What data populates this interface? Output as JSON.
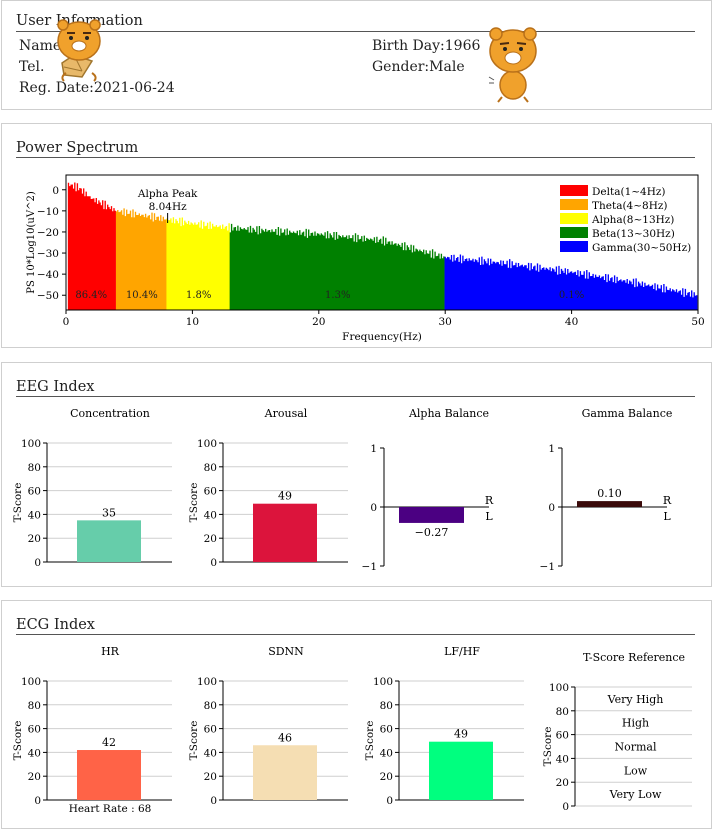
{
  "user_info": {
    "title": "User Information",
    "name_label": "Name:",
    "name_value": "",
    "tel_label": "Tel.",
    "tel_value": "",
    "reg_label": "Reg. Date:",
    "reg_value": "2021-06-24",
    "birth_label": "Birth Day:",
    "birth_value": "1966",
    "gender_label": "Gender:",
    "gender_value": "Male"
  },
  "power_spectrum": {
    "title": "Power Spectrum",
    "chart_data": {
      "type": "bar",
      "xlabel": "Frequency(Hz)",
      "ylabel": "PS 10*Log10(uV^2)",
      "xlim": [
        0,
        50
      ],
      "ylim": [
        -57,
        7
      ],
      "xticks": [
        0,
        10,
        20,
        30,
        40,
        50
      ],
      "yticks": [
        0,
        -10,
        -20,
        -30,
        -40,
        -50
      ],
      "envelope_hz_db": [
        [
          0.5,
          2
        ],
        [
          1,
          1
        ],
        [
          2,
          -4
        ],
        [
          3,
          -7
        ],
        [
          4,
          -10
        ],
        [
          6,
          -12
        ],
        [
          8,
          -14
        ],
        [
          10,
          -16
        ],
        [
          13,
          -18
        ],
        [
          15,
          -19
        ],
        [
          20,
          -21
        ],
        [
          25,
          -24
        ],
        [
          30,
          -32
        ],
        [
          35,
          -35
        ],
        [
          40,
          -39
        ],
        [
          45,
          -44
        ],
        [
          50,
          -50
        ]
      ],
      "annotation": {
        "label": "Alpha Peak",
        "value": "8.04Hz",
        "x": 8.04
      },
      "bands": [
        {
          "name": "Delta(1~4Hz)",
          "from": 0,
          "to": 4,
          "color": "#ff0000",
          "pct": "86.4%"
        },
        {
          "name": "Theta(4~8Hz)",
          "from": 4,
          "to": 8,
          "color": "#ffa500",
          "pct": "10.4%"
        },
        {
          "name": "Alpha(8~13Hz)",
          "from": 8,
          "to": 13,
          "color": "#ffff00",
          "pct": "1.8%"
        },
        {
          "name": "Beta(13~30Hz)",
          "from": 13,
          "to": 30,
          "color": "#008000",
          "pct": "1.3%"
        },
        {
          "name": "Gamma(30~50Hz)",
          "from": 30,
          "to": 50,
          "color": "#0000ff",
          "pct": "0.1%"
        }
      ],
      "legend": "top-right"
    }
  },
  "eeg_index": {
    "title": "EEG Index",
    "charts": [
      {
        "type": "bar",
        "title": "Concentration",
        "ylabel": "T-Score",
        "ylim": [
          0,
          100
        ],
        "yticks": [
          0,
          20,
          40,
          60,
          80,
          100
        ],
        "value": 35,
        "label": "35",
        "color": "#66cdaa"
      },
      {
        "type": "bar",
        "title": "Arousal",
        "ylabel": "T-Score",
        "ylim": [
          0,
          100
        ],
        "yticks": [
          0,
          20,
          40,
          60,
          80,
          100
        ],
        "value": 49,
        "label": "49",
        "color": "#dc143c"
      },
      {
        "type": "bar",
        "title": "Alpha Balance",
        "ylim": [
          -1,
          1
        ],
        "yticks": [
          -1,
          0,
          1
        ],
        "value": -0.27,
        "label": "-0.27",
        "color": "#4b0082",
        "right": "R",
        "left": "L"
      },
      {
        "type": "bar",
        "title": "Gamma Balance",
        "ylim": [
          -1,
          1
        ],
        "yticks": [
          -1,
          0,
          1
        ],
        "value": 0.1,
        "label": "0.10",
        "color": "#3a0a0a",
        "right": "R",
        "left": "L"
      }
    ]
  },
  "ecg_index": {
    "title": "ECG Index",
    "charts": [
      {
        "type": "bar",
        "title": "HR",
        "ylabel": "T-Score",
        "ylim": [
          0,
          100
        ],
        "yticks": [
          0,
          20,
          40,
          60,
          80,
          100
        ],
        "value": 42,
        "label": "42",
        "color": "#ff6347",
        "footer": "Heart Rate : 68"
      },
      {
        "type": "bar",
        "title": "SDNN",
        "ylabel": "T-Score",
        "ylim": [
          0,
          100
        ],
        "yticks": [
          0,
          20,
          40,
          60,
          80,
          100
        ],
        "value": 46,
        "label": "46",
        "color": "#f5deb3"
      },
      {
        "type": "bar",
        "title": "LF/HF",
        "ylabel": "T-Score",
        "ylim": [
          0,
          100
        ],
        "yticks": [
          0,
          20,
          40,
          60,
          80,
          100
        ],
        "value": 49,
        "label": "49",
        "color": "#00ff7f"
      }
    ],
    "reference": {
      "title": "T-Score Reference",
      "ylabel": "T-Score",
      "yticks": [
        0,
        20,
        40,
        60,
        80,
        100
      ],
      "levels": [
        "Very High",
        "High",
        "Normal",
        "Low",
        "Very Low"
      ]
    }
  },
  "mascot_icon": "lion-mascot-icon"
}
